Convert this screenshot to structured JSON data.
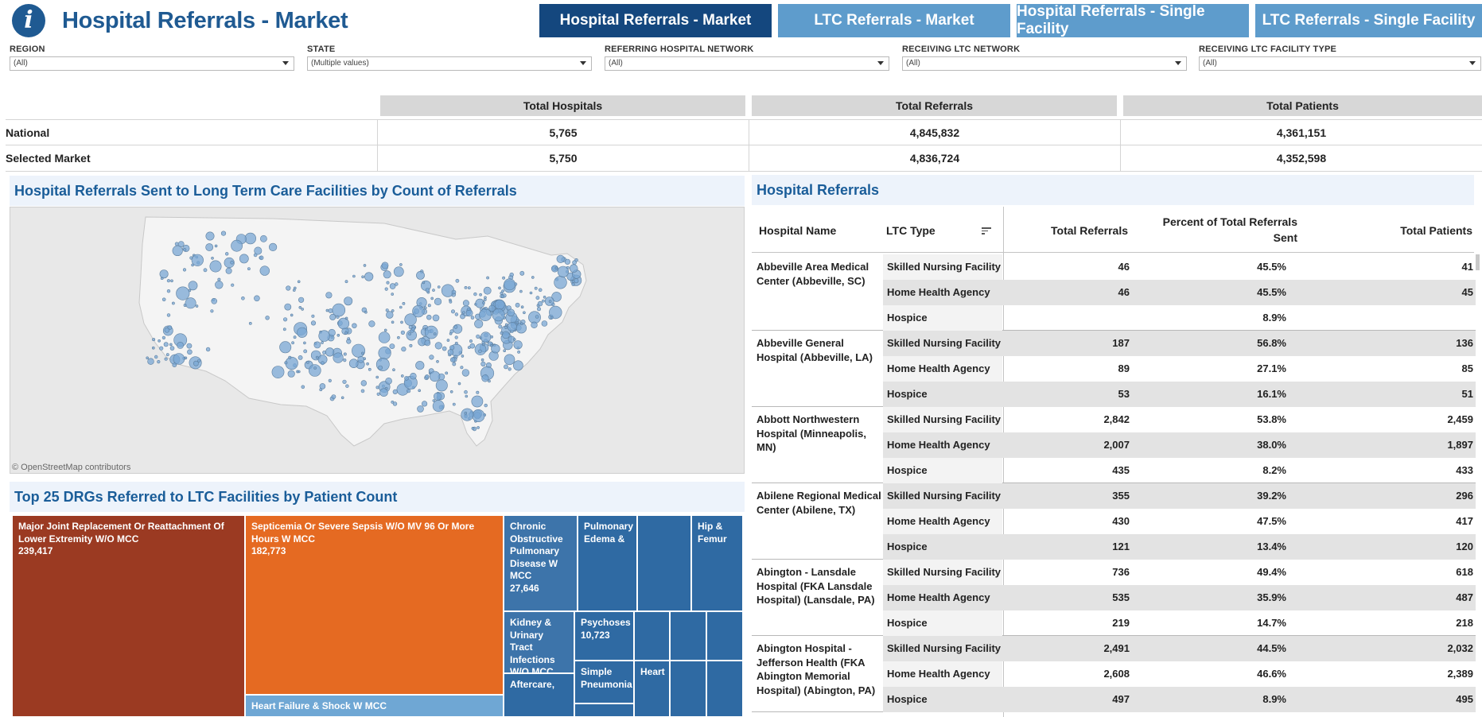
{
  "header": {
    "title": "Hospital Referrals - Market",
    "info_glyph": "i",
    "tabs": [
      {
        "label": "Hospital Referrals - Market",
        "active": true
      },
      {
        "label": "LTC Referrals - Market",
        "active": false
      },
      {
        "label": "Hospital Referrals - Single Facility",
        "active": false
      },
      {
        "label": "LTC Referrals - Single Facility",
        "active": false
      }
    ]
  },
  "filters": [
    {
      "label": "REGION",
      "value": "(All)"
    },
    {
      "label": "STATE",
      "value": "(Multiple values)"
    },
    {
      "label": "REFERRING HOSPITAL NETWORK",
      "value": "(All)"
    },
    {
      "label": "RECEIVING LTC NETWORK",
      "value": "(All)"
    },
    {
      "label": "RECEIVING LTC FACILITY TYPE",
      "value": "(All)"
    }
  ],
  "kpi": {
    "columns": [
      "Total Hospitals",
      "Total Referrals",
      "Total Patients"
    ],
    "rows": [
      {
        "label": "National",
        "values": [
          "5,765",
          "4,845,832",
          "4,361,151"
        ]
      },
      {
        "label": "Selected Market",
        "values": [
          "5,750",
          "4,836,724",
          "4,352,598"
        ]
      }
    ]
  },
  "map": {
    "title": "Hospital Referrals Sent to Long Term Care Facilities by Count of Referrals",
    "attribution": "© OpenStreetMap contributors",
    "bubble_color": "#7aa7d4"
  },
  "treemap": {
    "title": "Top 25 DRGs Referred to LTC Facilities by Patient Count",
    "cells": [
      {
        "label": "Major Joint Replacement Or Reattachment Of Lower Extremity W/O MCC",
        "value": "239,417",
        "color": "#9b3a22"
      },
      {
        "label": "Septicemia Or Severe Sepsis W/O MV 96 Or More Hours W MCC",
        "value": "182,773",
        "color": "#e56a22"
      },
      {
        "label": "Heart Failure & Shock W MCC",
        "value": "",
        "color": "#6fa7d4"
      },
      {
        "label": "Chronic Obstructive Pulmonary Disease W MCC",
        "value": "27,646",
        "color": "#3d74aa"
      },
      {
        "label": "Pulmonary Edema &",
        "value": "",
        "color": "#2f6aa3"
      },
      {
        "label": "",
        "value": "",
        "color": "#2f6aa3"
      },
      {
        "label": "Hip & Femur",
        "value": "",
        "color": "#2f6aa3"
      },
      {
        "label": "Kidney & Urinary Tract Infections W/O MCC",
        "value": "",
        "color": "#3d74aa"
      },
      {
        "label": "Psychoses",
        "value": "10,723",
        "color": "#2f6aa3"
      },
      {
        "label": "Simple Pneumonia",
        "value": "",
        "color": "#2f6aa3"
      },
      {
        "label": "Aftercare,",
        "value": "",
        "color": "#2f6aa3"
      },
      {
        "label": "Heart",
        "value": "",
        "color": "#2f6aa3"
      }
    ]
  },
  "table": {
    "title": "Hospital Referrals",
    "headers": {
      "hospital": "Hospital Name",
      "ltc": "LTC Type",
      "referrals": "Total Referrals",
      "percent": "Percent of Total Referrals Sent",
      "patients": "Total Patients"
    },
    "groups": [
      {
        "name": "Abbeville Area Medical Center (Abbeville, SC)",
        "rows": [
          {
            "ltc": "Skilled Nursing Facility",
            "referrals": "46",
            "percent": "45.5%",
            "patients": "41"
          },
          {
            "ltc": "Home Health Agency",
            "referrals": "46",
            "percent": "45.5%",
            "patients": "45"
          },
          {
            "ltc": "Hospice",
            "referrals": "",
            "percent": "8.9%",
            "patients": ""
          }
        ]
      },
      {
        "name": "Abbeville General Hospital (Abbeville, LA)",
        "rows": [
          {
            "ltc": "Skilled Nursing Facility",
            "referrals": "187",
            "percent": "56.8%",
            "patients": "136"
          },
          {
            "ltc": "Home Health Agency",
            "referrals": "89",
            "percent": "27.1%",
            "patients": "85"
          },
          {
            "ltc": "Hospice",
            "referrals": "53",
            "percent": "16.1%",
            "patients": "51"
          }
        ]
      },
      {
        "name": "Abbott Northwestern Hospital (Minneapolis, MN)",
        "rows": [
          {
            "ltc": "Skilled Nursing Facility",
            "referrals": "2,842",
            "percent": "53.8%",
            "patients": "2,459"
          },
          {
            "ltc": "Home Health Agency",
            "referrals": "2,007",
            "percent": "38.0%",
            "patients": "1,897"
          },
          {
            "ltc": "Hospice",
            "referrals": "435",
            "percent": "8.2%",
            "patients": "433"
          }
        ]
      },
      {
        "name": "Abilene Regional Medical Center (Abilene, TX)",
        "rows": [
          {
            "ltc": "Skilled Nursing Facility",
            "referrals": "355",
            "percent": "39.2%",
            "patients": "296"
          },
          {
            "ltc": "Home Health Agency",
            "referrals": "430",
            "percent": "47.5%",
            "patients": "417"
          },
          {
            "ltc": "Hospice",
            "referrals": "121",
            "percent": "13.4%",
            "patients": "120"
          }
        ]
      },
      {
        "name": "Abington - Lansdale Hospital (FKA Lansdale Hospital) (Lansdale, PA)",
        "rows": [
          {
            "ltc": "Skilled Nursing Facility",
            "referrals": "736",
            "percent": "49.4%",
            "patients": "618"
          },
          {
            "ltc": "Home Health Agency",
            "referrals": "535",
            "percent": "35.9%",
            "patients": "487"
          },
          {
            "ltc": "Hospice",
            "referrals": "219",
            "percent": "14.7%",
            "patients": "218"
          }
        ]
      },
      {
        "name": "Abington Hospital - Jefferson Health (FKA Abington Memorial Hospital) (Abington, PA)",
        "rows": [
          {
            "ltc": "Skilled Nursing Facility",
            "referrals": "2,491",
            "percent": "44.5%",
            "patients": "2,032"
          },
          {
            "ltc": "Home Health Agency",
            "referrals": "2,608",
            "percent": "46.6%",
            "patients": "2,389"
          },
          {
            "ltc": "Hospice",
            "referrals": "497",
            "percent": "8.9%",
            "patients": "495"
          }
        ]
      }
    ]
  }
}
